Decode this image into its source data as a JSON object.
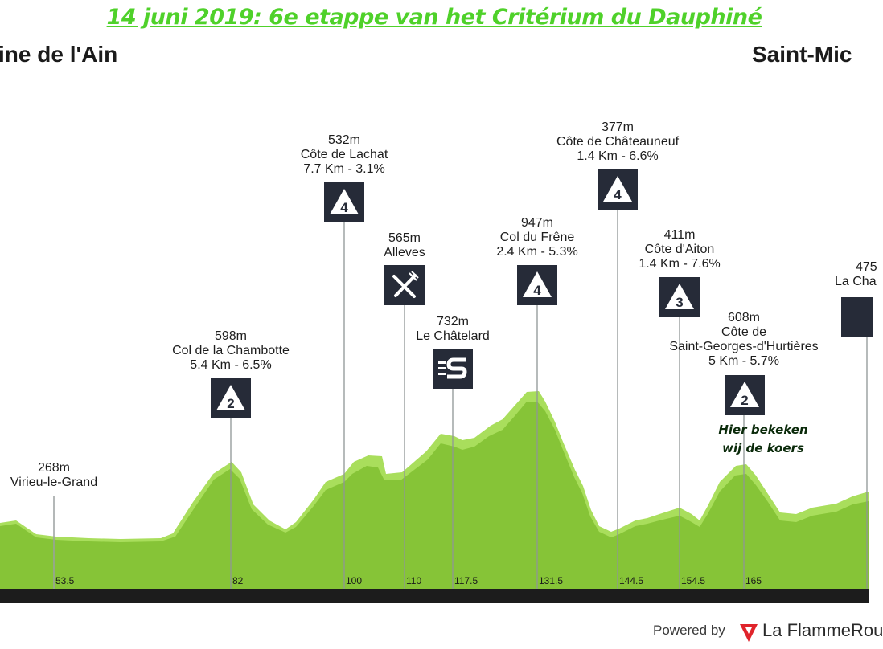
{
  "title": "14 juni 2019: 6e etappe van het Critérium du Dauphiné",
  "start_town": "ine de l'Ain",
  "finish_town": "Saint-Mic",
  "landmarks": [
    {
      "id": "virieu",
      "km": "53.5",
      "altitude": "268m",
      "name": "Virieu-le-Grand",
      "detail": "",
      "badge": ""
    },
    {
      "id": "chambotte",
      "km": "82",
      "altitude": "598m",
      "name": "Col de la Chambotte",
      "detail": "5.4 Km - 6.5%",
      "badge": "2"
    },
    {
      "id": "lachat",
      "km": "100",
      "altitude": "532m",
      "name": "Côte de Lachat",
      "detail": "7.7 Km - 3.1%",
      "badge": "4"
    },
    {
      "id": "alleves",
      "km": "110",
      "altitude": "565m",
      "name": "Alleves",
      "detail": "",
      "badge": "feed-zone"
    },
    {
      "id": "chatelard",
      "km": "117.5",
      "altitude": "732m",
      "name": "Le Châtelard",
      "detail": "",
      "badge": "sprint"
    },
    {
      "id": "frene",
      "km": "131.5",
      "altitude": "947m",
      "name": "Col du Frêne",
      "detail": "2.4 Km - 5.3%",
      "badge": "4"
    },
    {
      "id": "chateauneuf",
      "km": "144.5",
      "altitude": "377m",
      "name": "Côte de Châteauneuf",
      "detail": "1.4 Km - 6.6%",
      "badge": "4"
    },
    {
      "id": "aiton",
      "km": "154.5",
      "altitude": "411m",
      "name": "Côte d'Aiton",
      "detail": "1.4 Km - 7.6%",
      "badge": "3"
    },
    {
      "id": "hurtieres",
      "km": "165",
      "altitude": "608m",
      "name": "Côte de",
      "name2": "Saint-Georges-d'Hurtières",
      "detail": "5 Km - 5.7%",
      "badge": "2"
    },
    {
      "id": "lachambre",
      "km": "",
      "altitude": "475",
      "name": "La Cha",
      "detail": "",
      "badge": ""
    }
  ],
  "note": {
    "line1": "Hier bekeken",
    "line2": "wij de koers"
  },
  "footer": {
    "powered": "Powered by",
    "brand": "La FlammeRou"
  },
  "colors": {
    "light_green": "#a6dd58",
    "dark_green": "#84c235",
    "title_green": "#4fd12a",
    "badge": "#262b38",
    "base": "#1c1c1c"
  }
}
